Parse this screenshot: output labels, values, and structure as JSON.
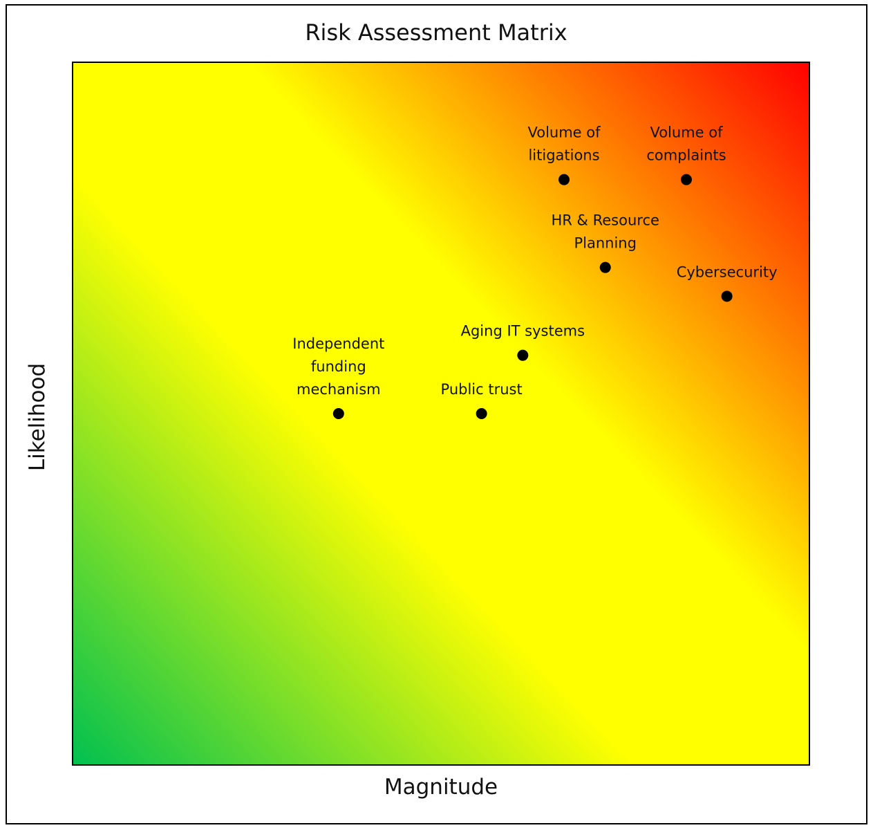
{
  "chart_data": {
    "type": "scatter",
    "title": "Risk Assessment Matrix",
    "xlabel": "Magnitude",
    "ylabel": "Likelihood",
    "xlim": [
      0,
      10
    ],
    "ylim": [
      0,
      10
    ],
    "grid": false,
    "background": {
      "type": "diagonal-gradient",
      "colors": [
        "#00c050",
        "#ffff00",
        "#ffff00",
        "#ff0000"
      ]
    },
    "points": [
      {
        "label": [
          "Volume of",
          "litigations"
        ],
        "x": 6.67,
        "y": 8.33
      },
      {
        "label": [
          "Volume of",
          "complaints"
        ],
        "x": 8.33,
        "y": 8.33
      },
      {
        "label": [
          "HR & Resource",
          "Planning"
        ],
        "x": 7.23,
        "y": 7.08
      },
      {
        "label": [
          "Cybersecurity"
        ],
        "x": 8.88,
        "y": 6.67
      },
      {
        "label": [
          "Aging IT systems"
        ],
        "x": 6.11,
        "y": 5.83
      },
      {
        "label": [
          "Independent",
          "funding",
          "mechanism"
        ],
        "x": 3.61,
        "y": 5.0
      },
      {
        "label": [
          "Public trust"
        ],
        "x": 5.55,
        "y": 5.0
      }
    ]
  }
}
